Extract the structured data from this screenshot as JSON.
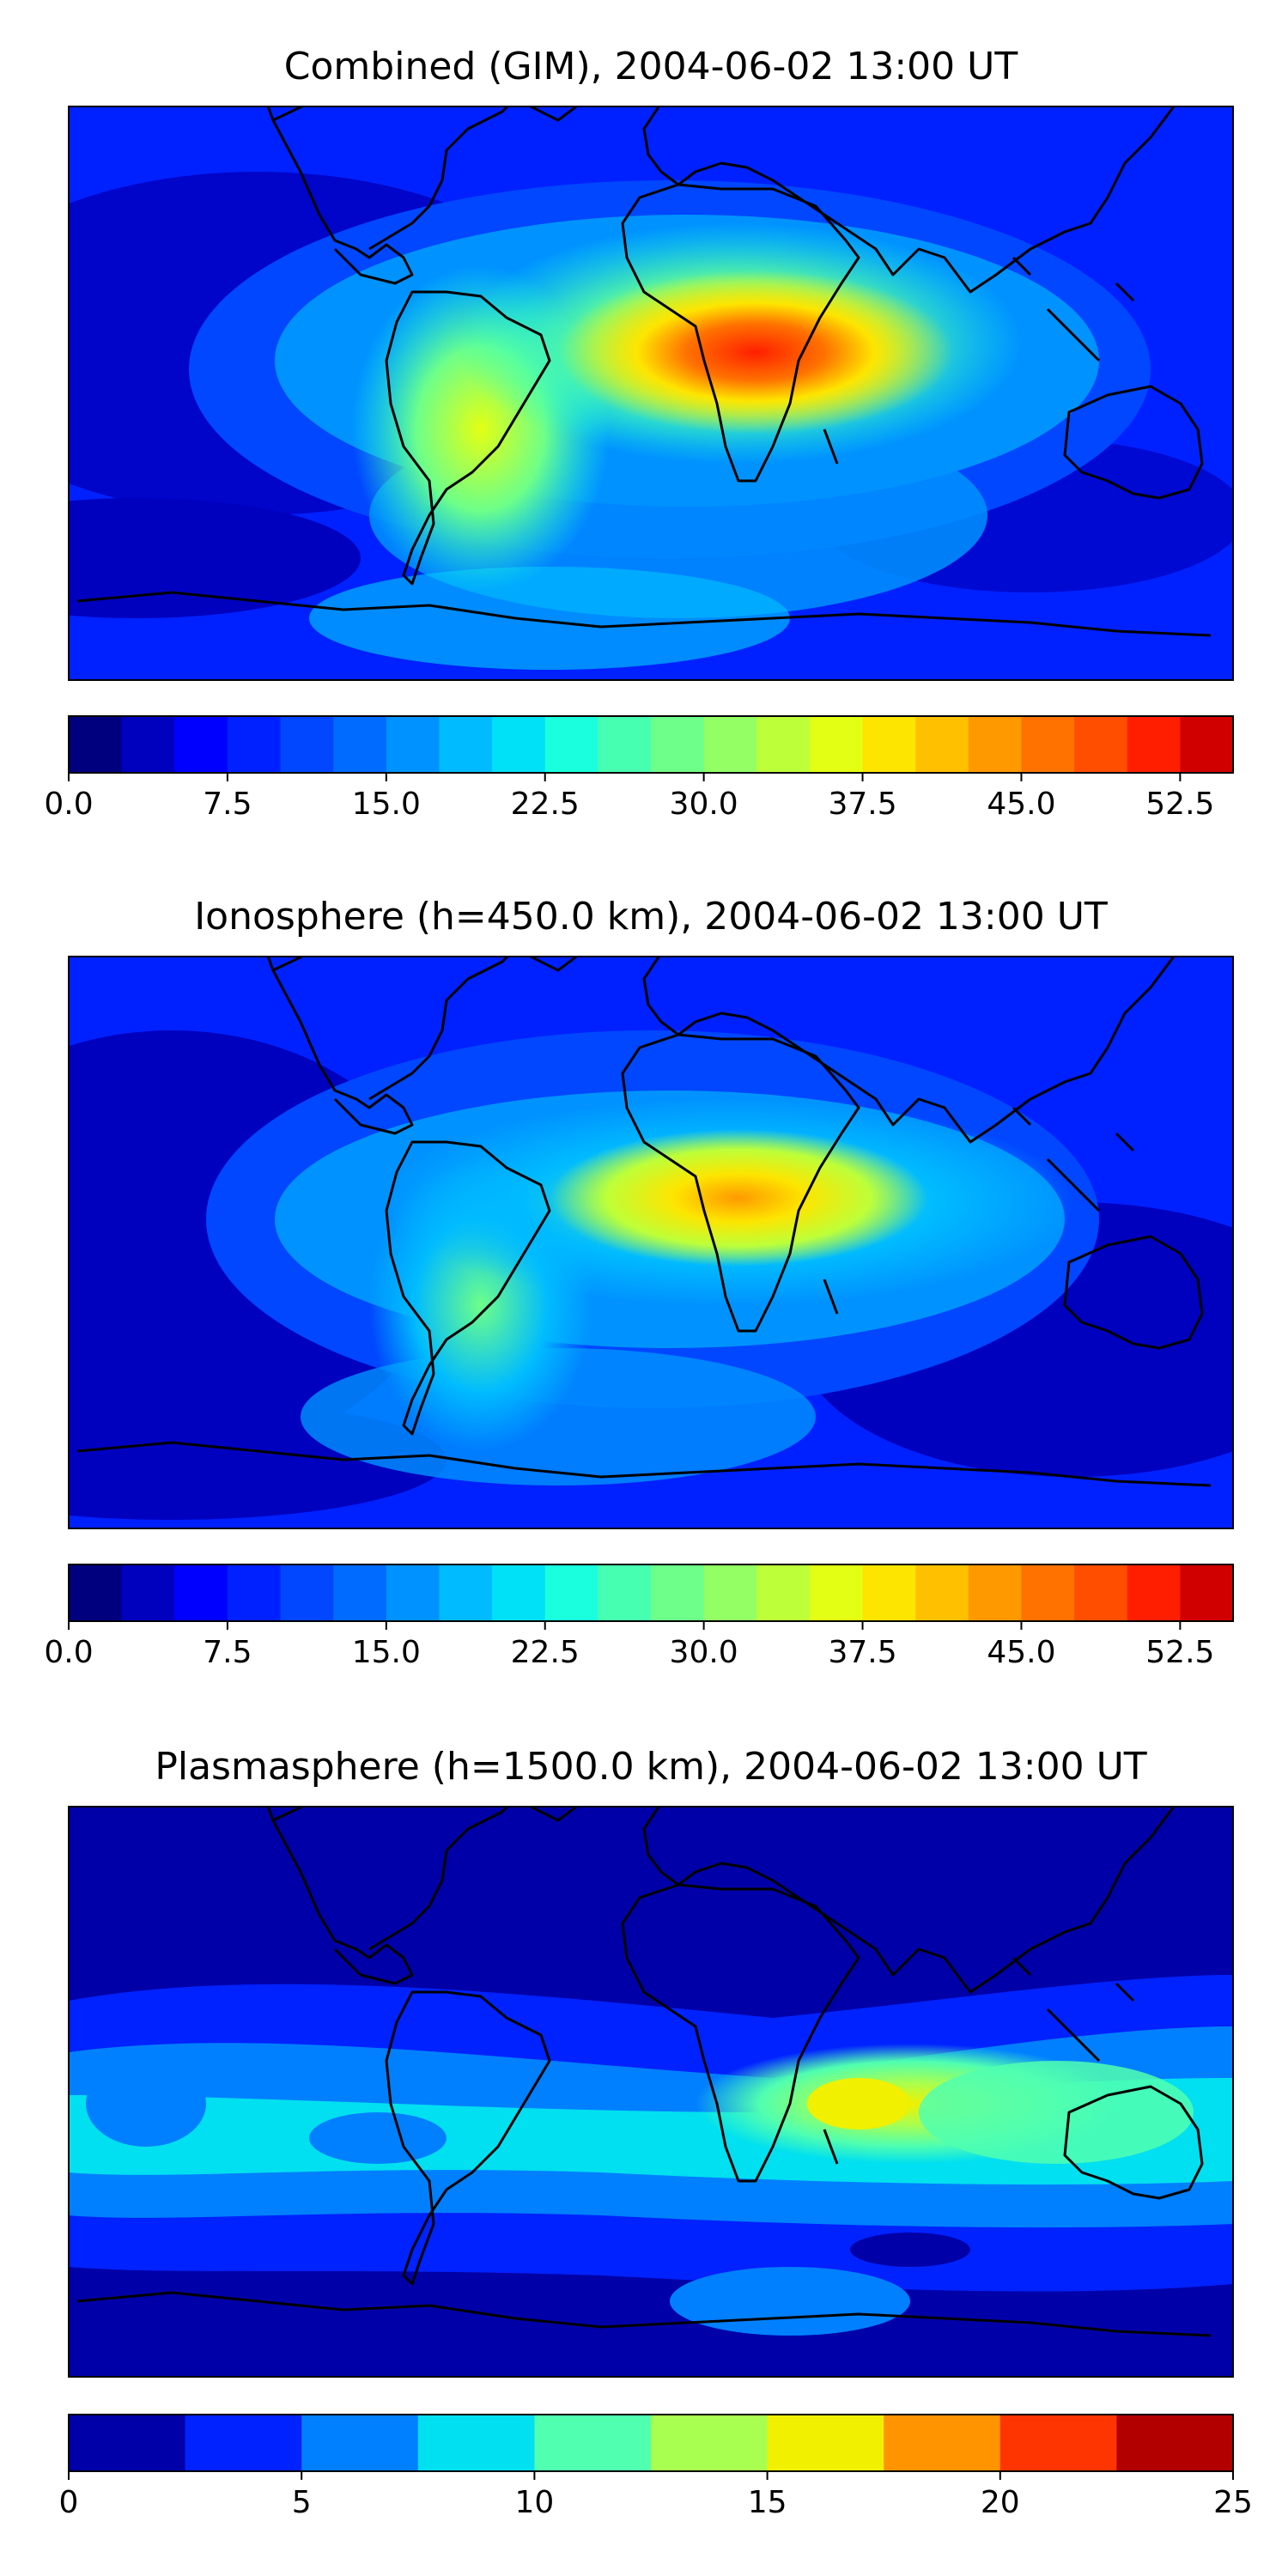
{
  "figure": {
    "chart_data": [
      {
        "type": "heatmap",
        "title": "Combined (GIM), 2004-06-02 13:00 UT",
        "map": "world-coastlines",
        "projection": "plate-carree",
        "lon_range": [
          -180,
          180
        ],
        "lat_range": [
          -90,
          90
        ],
        "colormap": "jet",
        "colorbar": {
          "orientation": "horizontal",
          "placement": "bottom",
          "levels": [
            0,
            2.5,
            5,
            7.5,
            10,
            12.5,
            15,
            17.5,
            20,
            22.5,
            25,
            27.5,
            30,
            32.5,
            35,
            37.5,
            40,
            42.5,
            45,
            47.5,
            50,
            52.5,
            55
          ],
          "ticks": [
            0,
            7.5,
            15,
            22.5,
            30,
            37.5,
            45,
            52.5
          ],
          "tick_labels": [
            "0.0",
            "7.5",
            "15.0",
            "22.5",
            "30.0",
            "37.5",
            "45.0",
            "52.5"
          ],
          "colors": [
            "#00007f",
            "#0000bf",
            "#0000ff",
            "#0021ff",
            "#0047ff",
            "#006bff",
            "#0093ff",
            "#00bbff",
            "#00e1f7",
            "#1affdd",
            "#47ffb0",
            "#6dff89",
            "#93ff64",
            "#bdff39",
            "#e3ff13",
            "#fde500",
            "#ffc000",
            "#ff9900",
            "#ff7200",
            "#ff4e00",
            "#ff1f00",
            "#d00000",
            "#8b0000"
          ]
        },
        "features": [
          {
            "desc": "peak over North Africa / Arabia",
            "lon": 25,
            "lat": 20,
            "value": 50
          },
          {
            "desc": "high over South America",
            "lon": -55,
            "lat": -15,
            "value": 32
          },
          {
            "desc": "minimum over mid/south Pacific",
            "lon": -150,
            "lat": -10,
            "value": 5
          }
        ]
      },
      {
        "type": "heatmap",
        "title": "Ionosphere  (h=450.0 km), 2004-06-02 13:00 UT",
        "map": "world-coastlines",
        "projection": "plate-carree",
        "lon_range": [
          -180,
          180
        ],
        "lat_range": [
          -90,
          90
        ],
        "colormap": "jet",
        "colorbar": {
          "orientation": "horizontal",
          "placement": "bottom",
          "levels": [
            0,
            2.5,
            5,
            7.5,
            10,
            12.5,
            15,
            17.5,
            20,
            22.5,
            25,
            27.5,
            30,
            32.5,
            35,
            37.5,
            40,
            42.5,
            45,
            47.5,
            50,
            52.5,
            55
          ],
          "ticks": [
            0,
            7.5,
            15,
            22.5,
            30,
            37.5,
            45,
            52.5
          ],
          "tick_labels": [
            "0.0",
            "7.5",
            "15.0",
            "22.5",
            "30.0",
            "37.5",
            "45.0",
            "52.5"
          ],
          "colors": [
            "#00007f",
            "#0000bf",
            "#0000ff",
            "#0021ff",
            "#0047ff",
            "#006bff",
            "#0093ff",
            "#00bbff",
            "#00e1f7",
            "#1affdd",
            "#47ffb0",
            "#6dff89",
            "#93ff64",
            "#bdff39",
            "#e3ff13",
            "#fde500",
            "#ffc000",
            "#ff9900",
            "#ff7200",
            "#ff4e00",
            "#ff1f00",
            "#d00000",
            "#8b0000"
          ]
        },
        "features": [
          {
            "desc": "peak over North Africa / Arabia",
            "lon": 25,
            "lat": 18,
            "value": 40
          },
          {
            "desc": "moderate over Brazil",
            "lon": -50,
            "lat": -10,
            "value": 25
          },
          {
            "desc": "low over Pacific and Australia",
            "lon": 140,
            "lat": -25,
            "value": 2
          }
        ]
      },
      {
        "type": "heatmap",
        "title": "Plasmasphere (h=1500.0 km), 2004-06-02 13:00 UT",
        "map": "world-coastlines",
        "projection": "plate-carree",
        "lon_range": [
          -180,
          180
        ],
        "lat_range": [
          -90,
          90
        ],
        "colormap": "jet",
        "colorbar": {
          "orientation": "horizontal",
          "placement": "bottom",
          "levels": [
            0,
            2.5,
            5,
            7.5,
            10,
            12.5,
            15,
            17.5,
            20,
            22.5,
            25
          ],
          "ticks": [
            0,
            5,
            10,
            15,
            20,
            25
          ],
          "tick_labels": [
            "0",
            "5",
            "10",
            "15",
            "20",
            "25"
          ],
          "colors": [
            "#0000a8",
            "#0022ff",
            "#0080ff",
            "#00e0f0",
            "#50ffb0",
            "#a8ff50",
            "#f0f000",
            "#ff9400",
            "#ff3500",
            "#b20000"
          ]
        },
        "features": [
          {
            "desc": "peak over Indian Ocean",
            "lon": 65,
            "lat": 0,
            "value": 16
          },
          {
            "desc": "band of 7.5-10 across low latitudes",
            "lon": -30,
            "lat": -5,
            "value": 9
          },
          {
            "desc": "low at high latitudes",
            "lon": 0,
            "lat": 70,
            "value": 1
          }
        ]
      }
    ]
  }
}
